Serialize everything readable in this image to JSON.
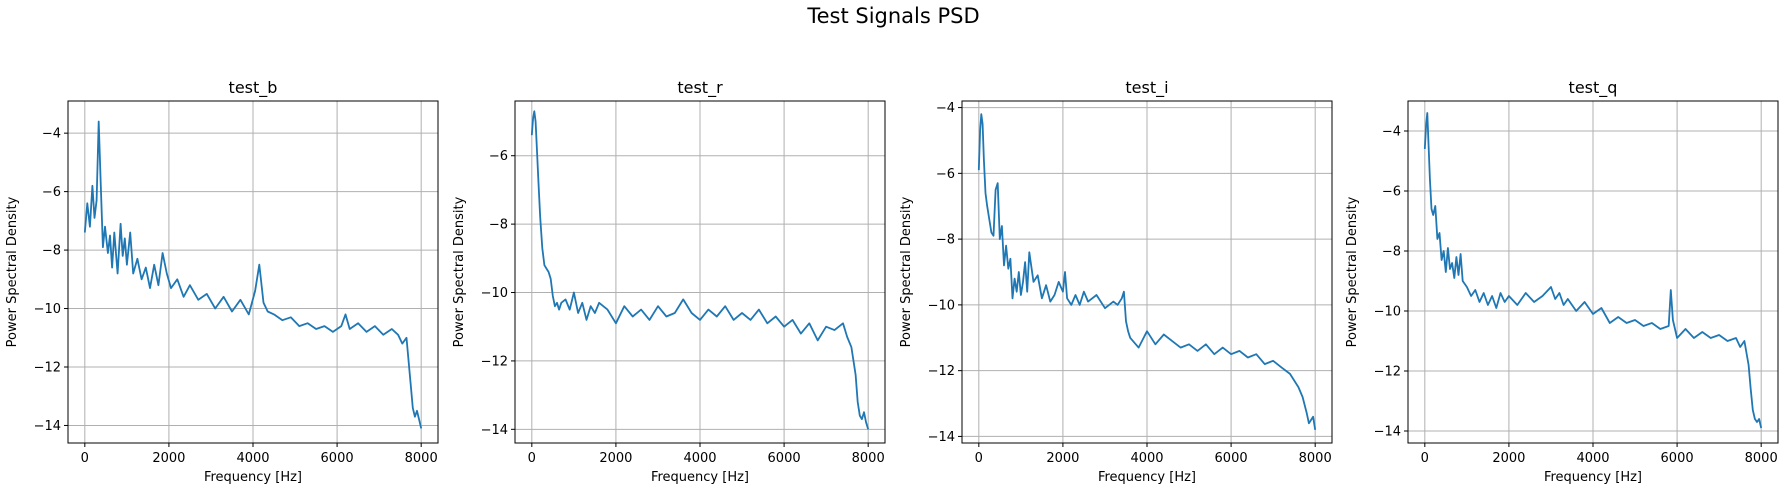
{
  "figure": {
    "suptitle": "Test Signals PSD"
  },
  "colors": {
    "line": "#1f77b4",
    "grid": "#b0b0b0",
    "axis": "#000000"
  },
  "chart_data": [
    {
      "type": "line",
      "title": "test_b",
      "xlabel": "Frequency [Hz]",
      "ylabel": "Power Spectral Density",
      "xlim": [
        -400,
        8400
      ],
      "ylim": [
        -14.6,
        -2.9
      ],
      "xticks": [
        0,
        2000,
        4000,
        6000,
        8000
      ],
      "xtick_labels": [
        "0",
        "2000",
        "4000",
        "6000",
        "8000"
      ],
      "yticks": [
        -14,
        -12,
        -10,
        -8,
        -6,
        -4
      ],
      "ytick_labels": [
        "−14",
        "−12",
        "−10",
        "−8",
        "−6",
        "−4"
      ],
      "grid": true,
      "series": [
        {
          "x": [
            0,
            60,
            120,
            180,
            230,
            280,
            330,
            380,
            430,
            480,
            550,
            600,
            650,
            700,
            780,
            850,
            900,
            950,
            1000,
            1080,
            1150,
            1250,
            1350,
            1450,
            1550,
            1650,
            1750,
            1850,
            1950,
            2050,
            2200,
            2350,
            2500,
            2700,
            2900,
            3100,
            3300,
            3500,
            3700,
            3900,
            4050,
            4150,
            4250,
            4350,
            4500,
            4700,
            4900,
            5100,
            5300,
            5500,
            5700,
            5900,
            6100,
            6200,
            6300,
            6500,
            6700,
            6900,
            7100,
            7300,
            7450,
            7550,
            7650,
            7750,
            7800,
            7850,
            7900,
            7950,
            8000
          ],
          "y": [
            -7.4,
            -6.4,
            -7.2,
            -5.8,
            -6.9,
            -6.3,
            -3.6,
            -5.8,
            -7.9,
            -7.2,
            -8.1,
            -7.5,
            -8.6,
            -7.4,
            -8.8,
            -7.1,
            -8.2,
            -7.6,
            -8.5,
            -7.4,
            -8.8,
            -8.3,
            -9.0,
            -8.6,
            -9.3,
            -8.5,
            -9.2,
            -8.1,
            -8.8,
            -9.3,
            -9.0,
            -9.6,
            -9.2,
            -9.7,
            -9.5,
            -10.0,
            -9.6,
            -10.1,
            -9.7,
            -10.2,
            -9.4,
            -8.5,
            -9.8,
            -10.1,
            -10.2,
            -10.4,
            -10.3,
            -10.6,
            -10.5,
            -10.7,
            -10.6,
            -10.8,
            -10.6,
            -10.2,
            -10.7,
            -10.5,
            -10.8,
            -10.6,
            -10.9,
            -10.7,
            -10.9,
            -11.2,
            -11.0,
            -12.6,
            -13.4,
            -13.7,
            -13.5,
            -13.8,
            -14.1
          ]
        }
      ]
    },
    {
      "type": "line",
      "title": "test_r",
      "xlabel": "Frequency [Hz]",
      "ylabel": "Power Spectral Density",
      "xlim": [
        -400,
        8400
      ],
      "ylim": [
        -14.4,
        -4.4
      ],
      "xticks": [
        0,
        2000,
        4000,
        6000,
        8000
      ],
      "xtick_labels": [
        "0",
        "2000",
        "4000",
        "6000",
        "8000"
      ],
      "yticks": [
        -14,
        -12,
        -10,
        -8,
        -6
      ],
      "ytick_labels": [
        "−14",
        "−12",
        "−10",
        "−8",
        "−6"
      ],
      "grid": true,
      "series": [
        {
          "x": [
            0,
            30,
            60,
            90,
            120,
            160,
            200,
            250,
            300,
            350,
            400,
            450,
            500,
            550,
            600,
            650,
            700,
            800,
            900,
            1000,
            1100,
            1200,
            1300,
            1400,
            1500,
            1600,
            1800,
            2000,
            2200,
            2400,
            2600,
            2800,
            3000,
            3200,
            3400,
            3600,
            3800,
            4000,
            4200,
            4400,
            4600,
            4800,
            5000,
            5200,
            5400,
            5600,
            5800,
            6000,
            6200,
            6400,
            6600,
            6800,
            7000,
            7200,
            7400,
            7500,
            7600,
            7700,
            7750,
            7800,
            7850,
            7900,
            7950,
            8000
          ],
          "y": [
            -5.4,
            -4.9,
            -4.7,
            -5.0,
            -5.8,
            -6.8,
            -7.8,
            -8.7,
            -9.2,
            -9.3,
            -9.4,
            -9.6,
            -10.1,
            -10.4,
            -10.3,
            -10.5,
            -10.3,
            -10.2,
            -10.5,
            -10.0,
            -10.6,
            -10.3,
            -10.8,
            -10.4,
            -10.6,
            -10.3,
            -10.5,
            -10.9,
            -10.4,
            -10.7,
            -10.5,
            -10.8,
            -10.4,
            -10.7,
            -10.6,
            -10.2,
            -10.6,
            -10.8,
            -10.5,
            -10.7,
            -10.4,
            -10.8,
            -10.6,
            -10.8,
            -10.5,
            -10.9,
            -10.7,
            -11.0,
            -10.8,
            -11.2,
            -10.9,
            -11.4,
            -11.0,
            -11.1,
            -10.9,
            -11.3,
            -11.6,
            -12.4,
            -13.2,
            -13.6,
            -13.7,
            -13.5,
            -13.8,
            -14.0
          ]
        }
      ]
    },
    {
      "type": "line",
      "title": "test_i",
      "xlabel": "Frequency [Hz]",
      "ylabel": "Power Spectral Density",
      "xlim": [
        -400,
        8400
      ],
      "ylim": [
        -14.2,
        -3.8
      ],
      "xticks": [
        0,
        2000,
        4000,
        6000,
        8000
      ],
      "xtick_labels": [
        "0",
        "2000",
        "4000",
        "6000",
        "8000"
      ],
      "yticks": [
        -14,
        -12,
        -10,
        -8,
        -6,
        -4
      ],
      "ytick_labels": [
        "−14",
        "−12",
        "−10",
        "−8",
        "−6",
        "−4"
      ],
      "grid": true,
      "series": [
        {
          "x": [
            0,
            30,
            60,
            90,
            120,
            160,
            200,
            250,
            300,
            350,
            400,
            450,
            500,
            550,
            600,
            650,
            700,
            750,
            800,
            850,
            900,
            950,
            1000,
            1050,
            1100,
            1150,
            1200,
            1300,
            1400,
            1500,
            1600,
            1700,
            1800,
            1900,
            2000,
            2050,
            2100,
            2200,
            2300,
            2400,
            2500,
            2600,
            2800,
            3000,
            3200,
            3300,
            3400,
            3450,
            3500,
            3550,
            3600,
            3800,
            4000,
            4200,
            4400,
            4600,
            4800,
            5000,
            5200,
            5400,
            5600,
            5800,
            6000,
            6200,
            6400,
            6600,
            6800,
            7000,
            7200,
            7400,
            7500,
            7600,
            7700,
            7800,
            7850,
            7900,
            7950,
            8000
          ],
          "y": [
            -5.9,
            -4.7,
            -4.2,
            -4.5,
            -5.6,
            -6.6,
            -7.0,
            -7.4,
            -7.8,
            -7.9,
            -6.5,
            -6.3,
            -8.0,
            -7.6,
            -8.8,
            -8.2,
            -8.9,
            -8.6,
            -9.8,
            -9.2,
            -9.6,
            -9.0,
            -9.7,
            -9.3,
            -8.7,
            -9.6,
            -8.4,
            -9.3,
            -9.1,
            -9.8,
            -9.4,
            -9.9,
            -9.7,
            -9.3,
            -9.6,
            -9.0,
            -9.8,
            -10.0,
            -9.7,
            -10.0,
            -9.6,
            -9.9,
            -9.7,
            -10.1,
            -9.9,
            -10.0,
            -9.8,
            -9.6,
            -10.5,
            -10.8,
            -11.0,
            -11.3,
            -10.8,
            -11.2,
            -10.9,
            -11.1,
            -11.3,
            -11.2,
            -11.4,
            -11.2,
            -11.5,
            -11.3,
            -11.5,
            -11.4,
            -11.6,
            -11.5,
            -11.8,
            -11.7,
            -11.9,
            -12.1,
            -12.3,
            -12.5,
            -12.8,
            -13.3,
            -13.6,
            -13.5,
            -13.4,
            -13.8
          ]
        }
      ]
    },
    {
      "type": "line",
      "title": "test_q",
      "xlabel": "Frequency [Hz]",
      "ylabel": "Power Spectral Density",
      "xlim": [
        -400,
        8400
      ],
      "ylim": [
        -14.4,
        -3.0
      ],
      "xticks": [
        0,
        2000,
        4000,
        6000,
        8000
      ],
      "xtick_labels": [
        "0",
        "2000",
        "4000",
        "6000",
        "8000"
      ],
      "yticks": [
        -14,
        -12,
        -10,
        -8,
        -6,
        -4
      ],
      "ytick_labels": [
        "−14",
        "−12",
        "−10",
        "−8",
        "−6",
        "−4"
      ],
      "grid": true,
      "series": [
        {
          "x": [
            0,
            30,
            60,
            90,
            120,
            160,
            200,
            250,
            300,
            350,
            400,
            450,
            500,
            550,
            600,
            650,
            700,
            750,
            800,
            850,
            900,
            1000,
            1100,
            1200,
            1300,
            1400,
            1500,
            1600,
            1700,
            1800,
            1900,
            2000,
            2200,
            2400,
            2600,
            2800,
            3000,
            3100,
            3200,
            3300,
            3400,
            3600,
            3800,
            4000,
            4200,
            4400,
            4600,
            4800,
            5000,
            5200,
            5400,
            5600,
            5800,
            5850,
            5900,
            5950,
            6000,
            6200,
            6400,
            6600,
            6800,
            7000,
            7200,
            7400,
            7500,
            7600,
            7700,
            7750,
            7800,
            7850,
            7900,
            7950,
            8000
          ],
          "y": [
            -4.6,
            -3.8,
            -3.4,
            -4.5,
            -5.6,
            -6.6,
            -6.8,
            -6.5,
            -7.6,
            -7.4,
            -8.3,
            -8.0,
            -8.7,
            -7.9,
            -8.6,
            -8.4,
            -8.9,
            -8.2,
            -8.8,
            -8.1,
            -9.0,
            -9.2,
            -9.5,
            -9.3,
            -9.7,
            -9.4,
            -9.8,
            -9.5,
            -9.9,
            -9.4,
            -9.7,
            -9.5,
            -9.8,
            -9.4,
            -9.7,
            -9.5,
            -9.2,
            -9.6,
            -9.4,
            -9.8,
            -9.6,
            -10.0,
            -9.7,
            -10.1,
            -9.9,
            -10.4,
            -10.2,
            -10.4,
            -10.3,
            -10.5,
            -10.4,
            -10.6,
            -10.5,
            -9.3,
            -10.3,
            -10.6,
            -10.9,
            -10.6,
            -10.9,
            -10.7,
            -10.9,
            -10.8,
            -11.0,
            -10.9,
            -11.2,
            -11.0,
            -11.8,
            -12.6,
            -13.3,
            -13.6,
            -13.7,
            -13.6,
            -13.9
          ]
        }
      ]
    }
  ]
}
